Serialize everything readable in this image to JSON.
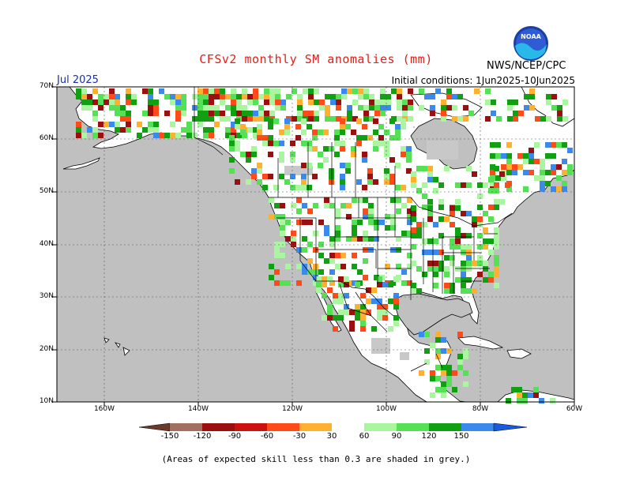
{
  "header": {
    "title": "CFSv2 monthly SM anomalies (mm)",
    "agency": "NWS/NCEP/CPC",
    "logo_text": "NOAA",
    "month": "Jul 2025",
    "initial_conditions": "Initial conditions: 1Jun2025-10Jun2025"
  },
  "axes": {
    "lat_labels": [
      "70N",
      "60N",
      "50N",
      "40N",
      "30N",
      "20N",
      "10N"
    ],
    "lon_labels": [
      "160W",
      "140W",
      "120W",
      "100W",
      "80W",
      "60W"
    ]
  },
  "colorbar": {
    "labels": [
      "-150",
      "-120",
      "-90",
      "-60",
      "-30",
      "30",
      "60",
      "90",
      "120",
      "150"
    ],
    "colors": [
      "#6b3a2a",
      "#a07060",
      "#9a0f0f",
      "#cc1111",
      "#ff4a1a",
      "#ffb030",
      "#ffffff",
      "#aaf5a0",
      "#55e055",
      "#11a011",
      "#3a8aee",
      "#1a5ae0"
    ]
  },
  "footnote": "(Areas of expected skill less than 0.3 are shaded in grey.)",
  "map_colors": {
    "background_grey": "#c0c0c0",
    "land_white": "#ffffff",
    "skill_grey": "#c8c8c8"
  }
}
